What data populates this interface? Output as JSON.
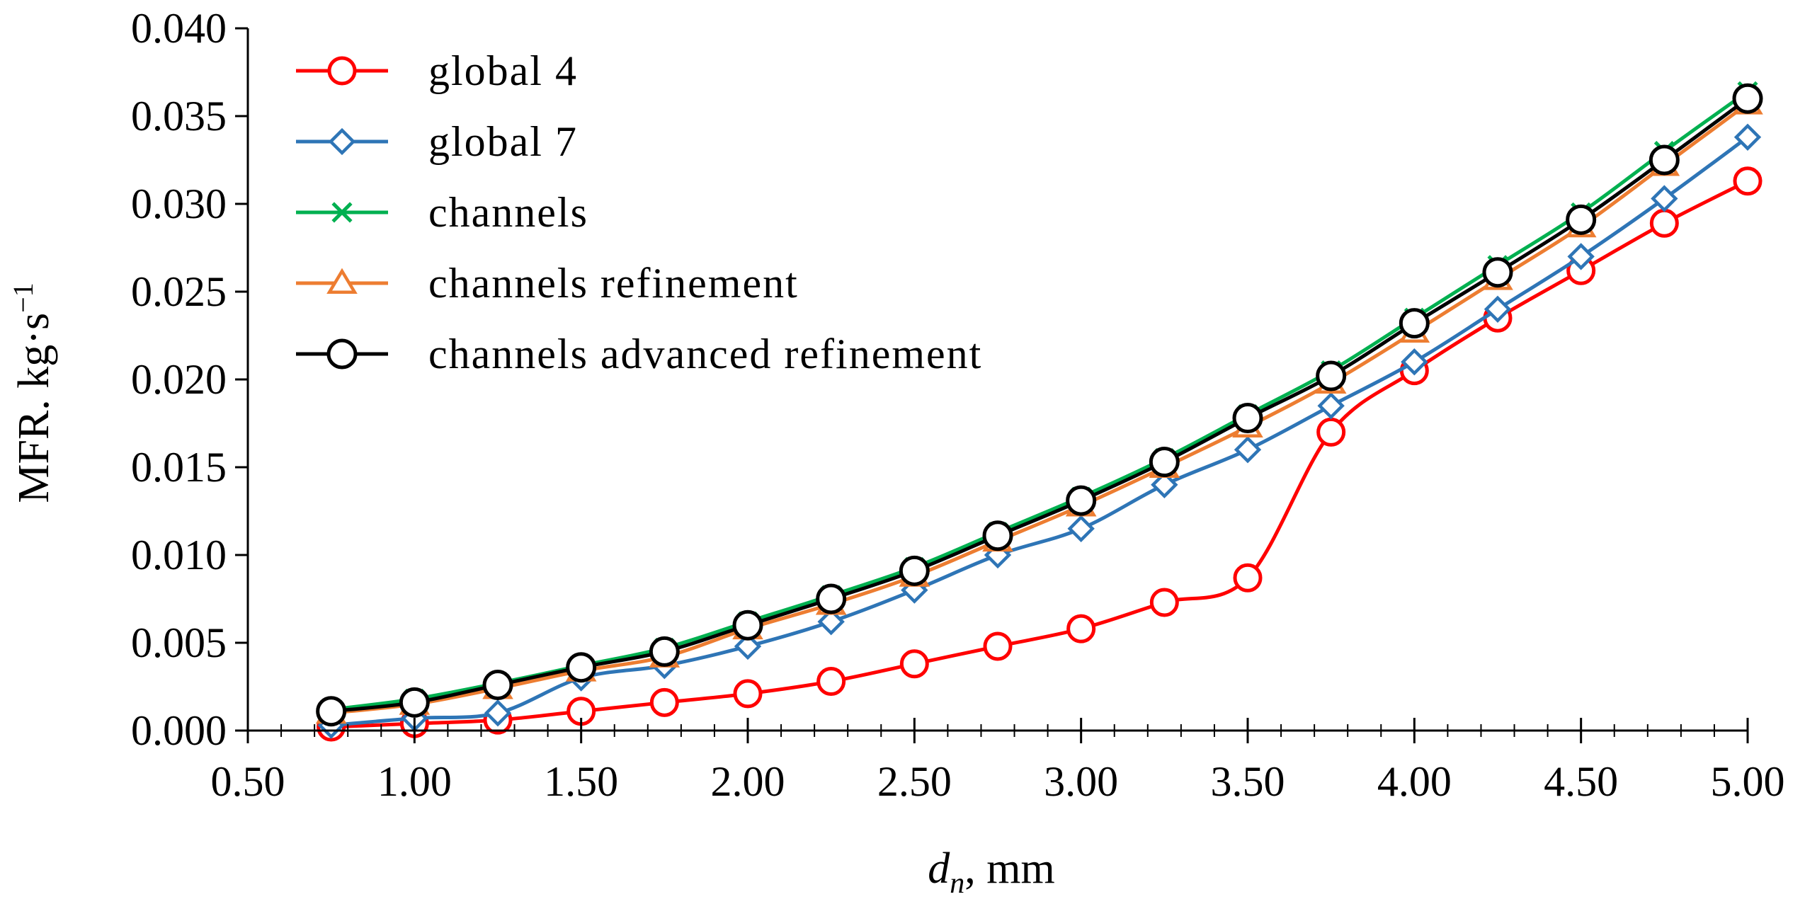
{
  "chart_data": {
    "type": "line",
    "xlabel": "d",
    "xlabel_sub": "n",
    "xlabel_unit": ", mm",
    "ylabel": "MFR. kg·s",
    "ylabel_sup": "−1",
    "xlim": [
      0.5,
      5.0
    ],
    "ylim": [
      0.0,
      0.04
    ],
    "x_ticks": [
      "0.50",
      "1.00",
      "1.50",
      "2.00",
      "2.50",
      "3.00",
      "3.50",
      "4.00",
      "4.50",
      "5.00"
    ],
    "y_ticks": [
      "0.000",
      "0.005",
      "0.010",
      "0.015",
      "0.020",
      "0.025",
      "0.030",
      "0.035",
      "0.040"
    ],
    "grid": false,
    "legend_position": "top-left",
    "x": [
      0.75,
      1.0,
      1.25,
      1.5,
      1.75,
      2.0,
      2.25,
      2.5,
      2.75,
      3.0,
      3.25,
      3.5,
      3.75,
      4.0,
      4.25,
      4.5,
      4.75,
      5.0
    ],
    "series": [
      {
        "name": "global 4",
        "color": "#ff0000",
        "marker": "circle",
        "values": [
          0.0002,
          0.0004,
          0.0006,
          0.0011,
          0.0016,
          0.0021,
          0.0028,
          0.0038,
          0.0048,
          0.0058,
          0.0073,
          0.0087,
          0.017,
          0.0205,
          0.0235,
          0.0262,
          0.0289,
          0.0313
        ]
      },
      {
        "name": "global 7",
        "color": "#2e75b6",
        "marker": "diamond",
        "values": [
          0.0003,
          0.0007,
          0.001,
          0.003,
          0.0037,
          0.0048,
          0.0062,
          0.008,
          0.01,
          0.0115,
          0.014,
          0.016,
          0.0185,
          0.021,
          0.024,
          0.027,
          0.0303,
          0.0338
        ]
      },
      {
        "name": "channels",
        "color": "#00b050",
        "marker": "x",
        "values": [
          0.0012,
          0.0018,
          0.0027,
          0.0037,
          0.0047,
          0.0062,
          0.0077,
          0.0093,
          0.0113,
          0.0133,
          0.0155,
          0.018,
          0.0205,
          0.0235,
          0.0265,
          0.0295,
          0.033,
          0.0364
        ]
      },
      {
        "name": "channels refinement",
        "color": "#ed7d31",
        "marker": "triangle",
        "values": [
          0.001,
          0.0015,
          0.0024,
          0.0034,
          0.0042,
          0.0058,
          0.0072,
          0.0088,
          0.0108,
          0.0128,
          0.015,
          0.0173,
          0.0198,
          0.0227,
          0.0257,
          0.0287,
          0.0322,
          0.0357
        ]
      },
      {
        "name": "channels advanced refinement",
        "color": "#000000",
        "marker": "circle",
        "values": [
          0.0011,
          0.0016,
          0.0026,
          0.0036,
          0.0045,
          0.006,
          0.0075,
          0.0091,
          0.0111,
          0.0131,
          0.0153,
          0.0178,
          0.0202,
          0.0232,
          0.0261,
          0.0291,
          0.0325,
          0.036
        ]
      }
    ]
  }
}
